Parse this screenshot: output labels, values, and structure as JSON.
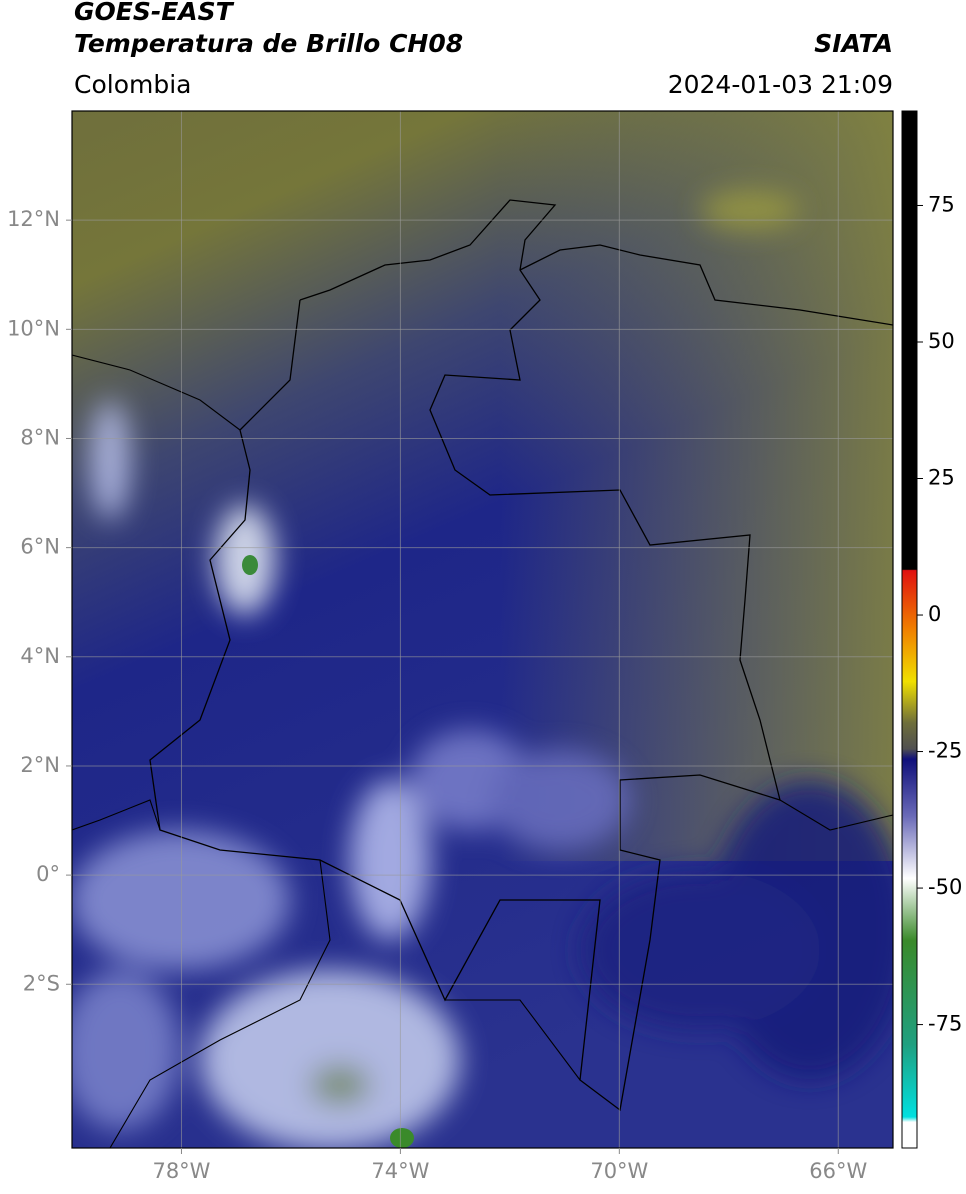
{
  "header": {
    "title": "GOES-EAST",
    "subtitle": "Temperatura de Brillo CH08",
    "source": "SIATA",
    "region": "Colombia",
    "datetime": "2024-01-03 21:09"
  },
  "map": {
    "xlim": [
      -80,
      -65
    ],
    "ylim": [
      -5,
      14
    ],
    "xticks": [
      {
        "value": -78,
        "label": "78°W"
      },
      {
        "value": -74,
        "label": "74°W"
      },
      {
        "value": -70,
        "label": "70°W"
      },
      {
        "value": -66,
        "label": "66°W"
      }
    ],
    "yticks": [
      {
        "value": 12,
        "label": "12°N"
      },
      {
        "value": 10,
        "label": "10°N"
      },
      {
        "value": 8,
        "label": "8°N"
      },
      {
        "value": 6,
        "label": "6°N"
      },
      {
        "value": 4,
        "label": "4°N"
      },
      {
        "value": 2,
        "label": "2°N"
      },
      {
        "value": 0,
        "label": "0°"
      },
      {
        "value": -2,
        "label": "2°S"
      }
    ],
    "grid": true
  },
  "colorbar": {
    "lim": [
      -97.6,
      92.3
    ],
    "ticks": [
      75,
      50,
      25,
      0,
      -25,
      -50,
      -75
    ]
  }
}
